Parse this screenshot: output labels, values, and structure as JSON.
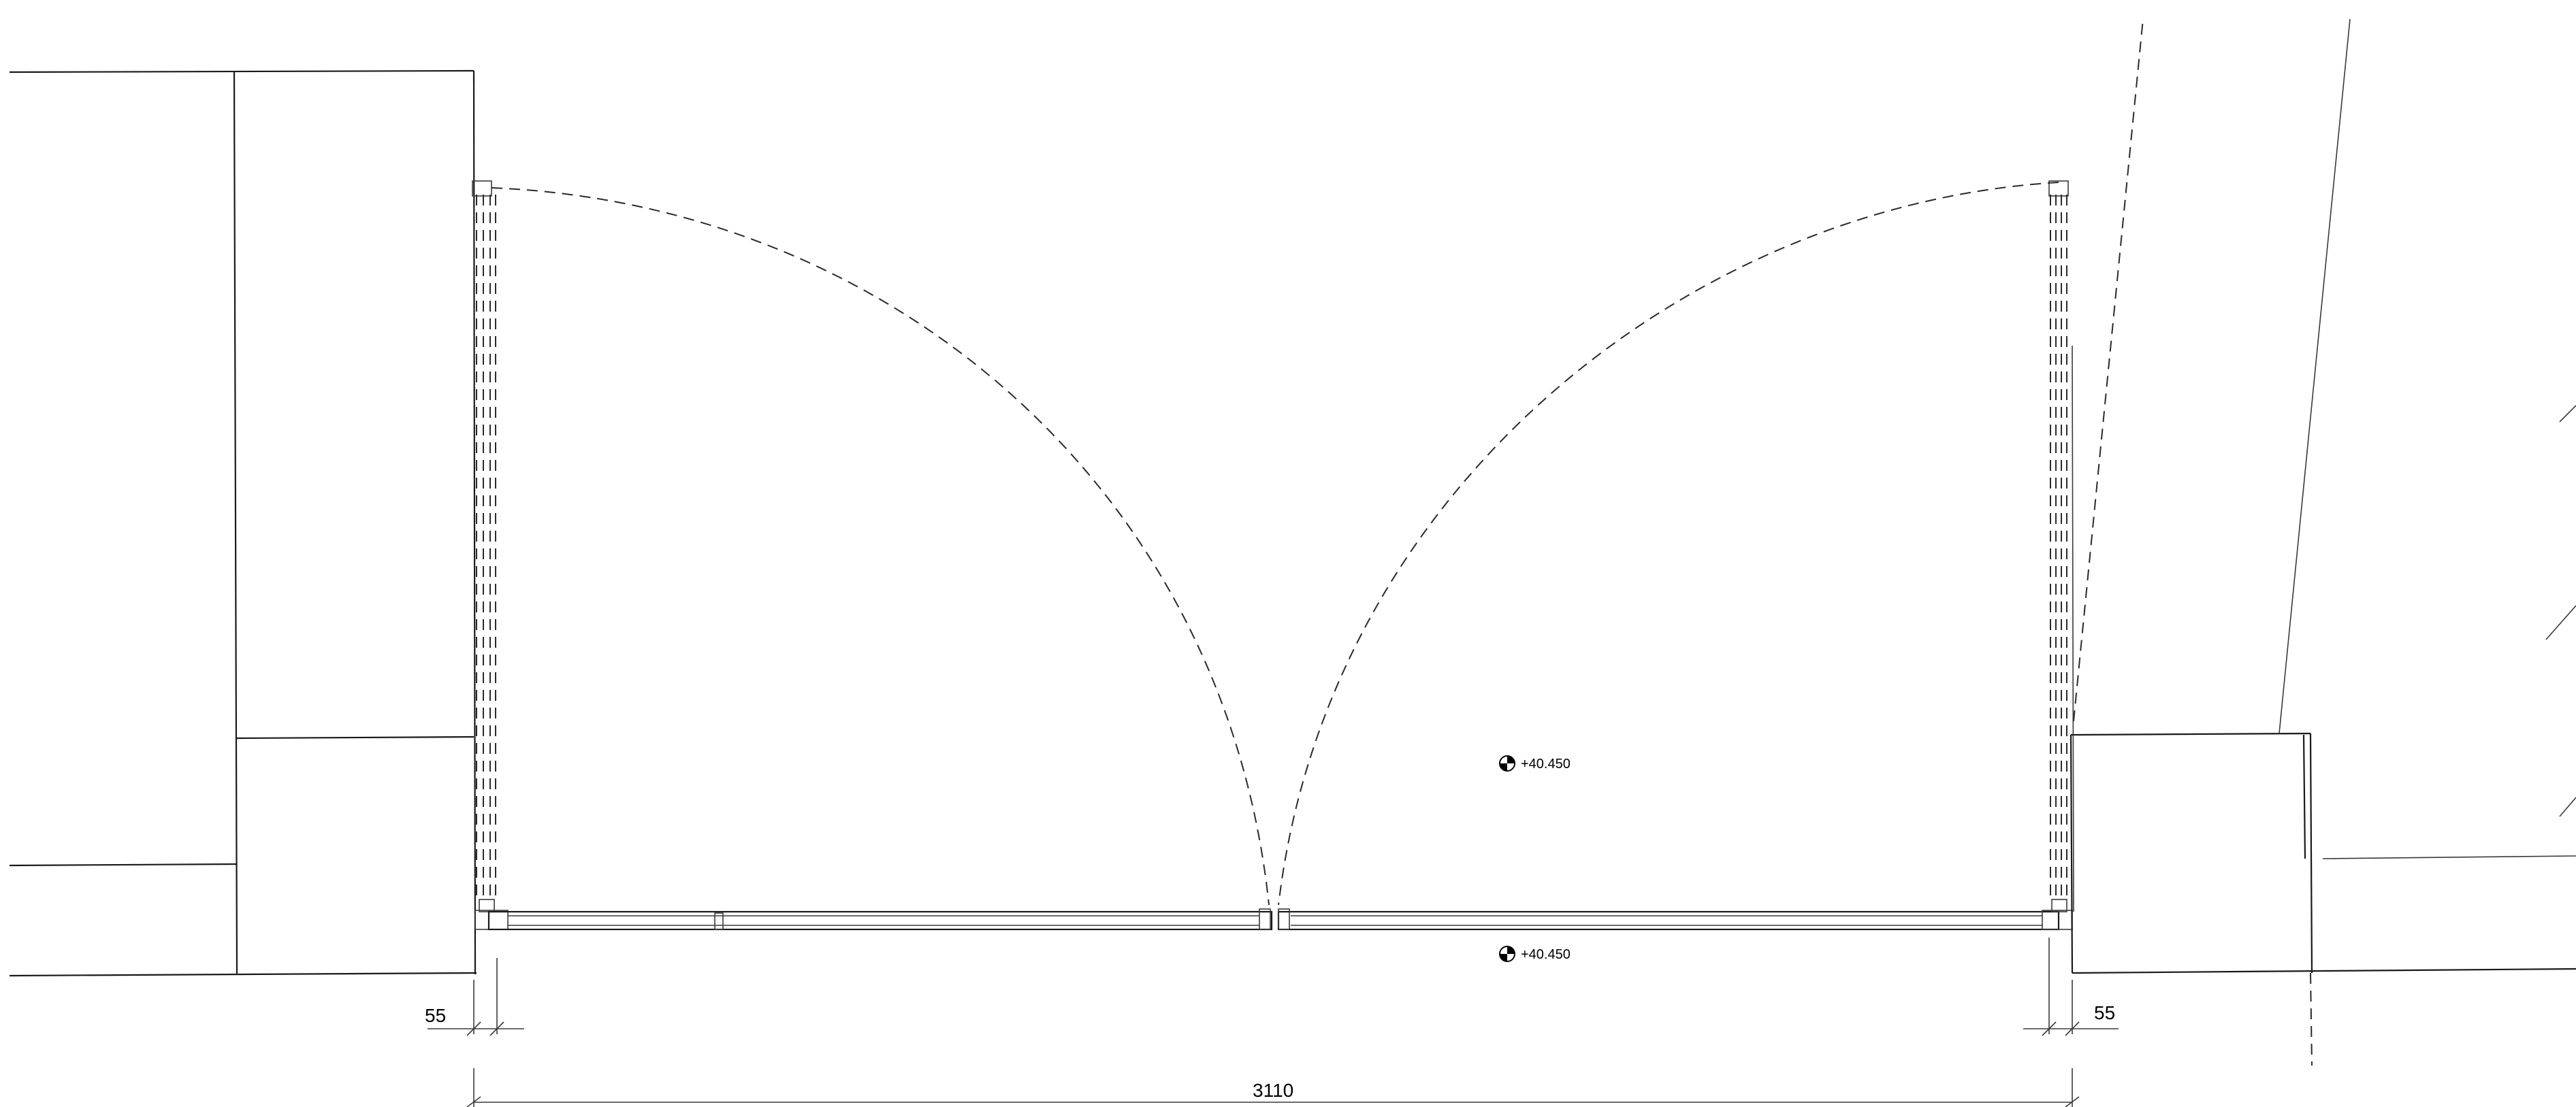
{
  "dimensions": {
    "left_offset": "55",
    "right_offset": "55",
    "overall_width": "3110"
  },
  "levels": {
    "inner": "+40.450",
    "outer": "+40.450"
  },
  "sheet_title": "",
  "colors": {
    "line": "#1a1a1a",
    "background": "#ffffff"
  }
}
